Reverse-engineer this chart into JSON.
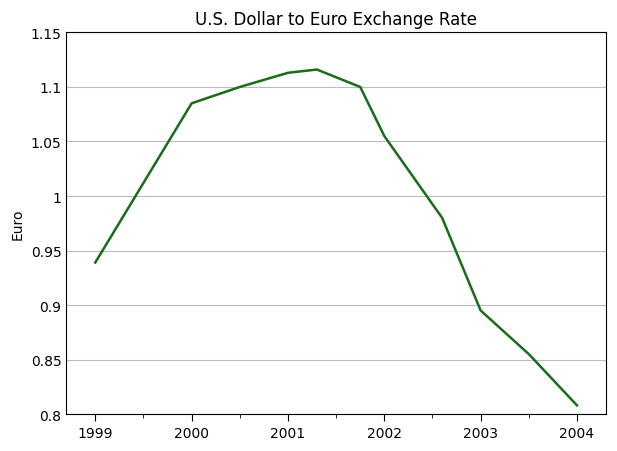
{
  "title": "U.S. Dollar to Euro Exchange Rate",
  "xlabel": "",
  "ylabel": "Euro",
  "x_values": [
    1999,
    2000,
    2000.5,
    2001,
    2001.3,
    2001.75,
    2002,
    2002.6,
    2003,
    2003.5,
    2004
  ],
  "y_values": [
    0.939,
    1.085,
    1.1,
    1.113,
    1.116,
    1.1,
    1.055,
    0.98,
    0.895,
    0.855,
    0.808
  ],
  "line_color": "#1a6b1a",
  "line_width": 1.8,
  "xlim": [
    1998.7,
    2004.3
  ],
  "ylim": [
    0.8,
    1.15
  ],
  "yticks": [
    0.8,
    0.85,
    0.9,
    0.95,
    1.0,
    1.05,
    1.1,
    1.15
  ],
  "ytick_labels": [
    "0.8",
    "0.85",
    "0.9",
    "0.95",
    "1",
    "1.05",
    "1.1",
    "1.15"
  ],
  "xticks": [
    1999,
    2000,
    2001,
    2002,
    2003,
    2004
  ],
  "background_color": "#ffffff",
  "grid_color": "#bbbbbb",
  "title_fontsize": 12,
  "axis_label_fontsize": 10,
  "tick_fontsize": 10
}
